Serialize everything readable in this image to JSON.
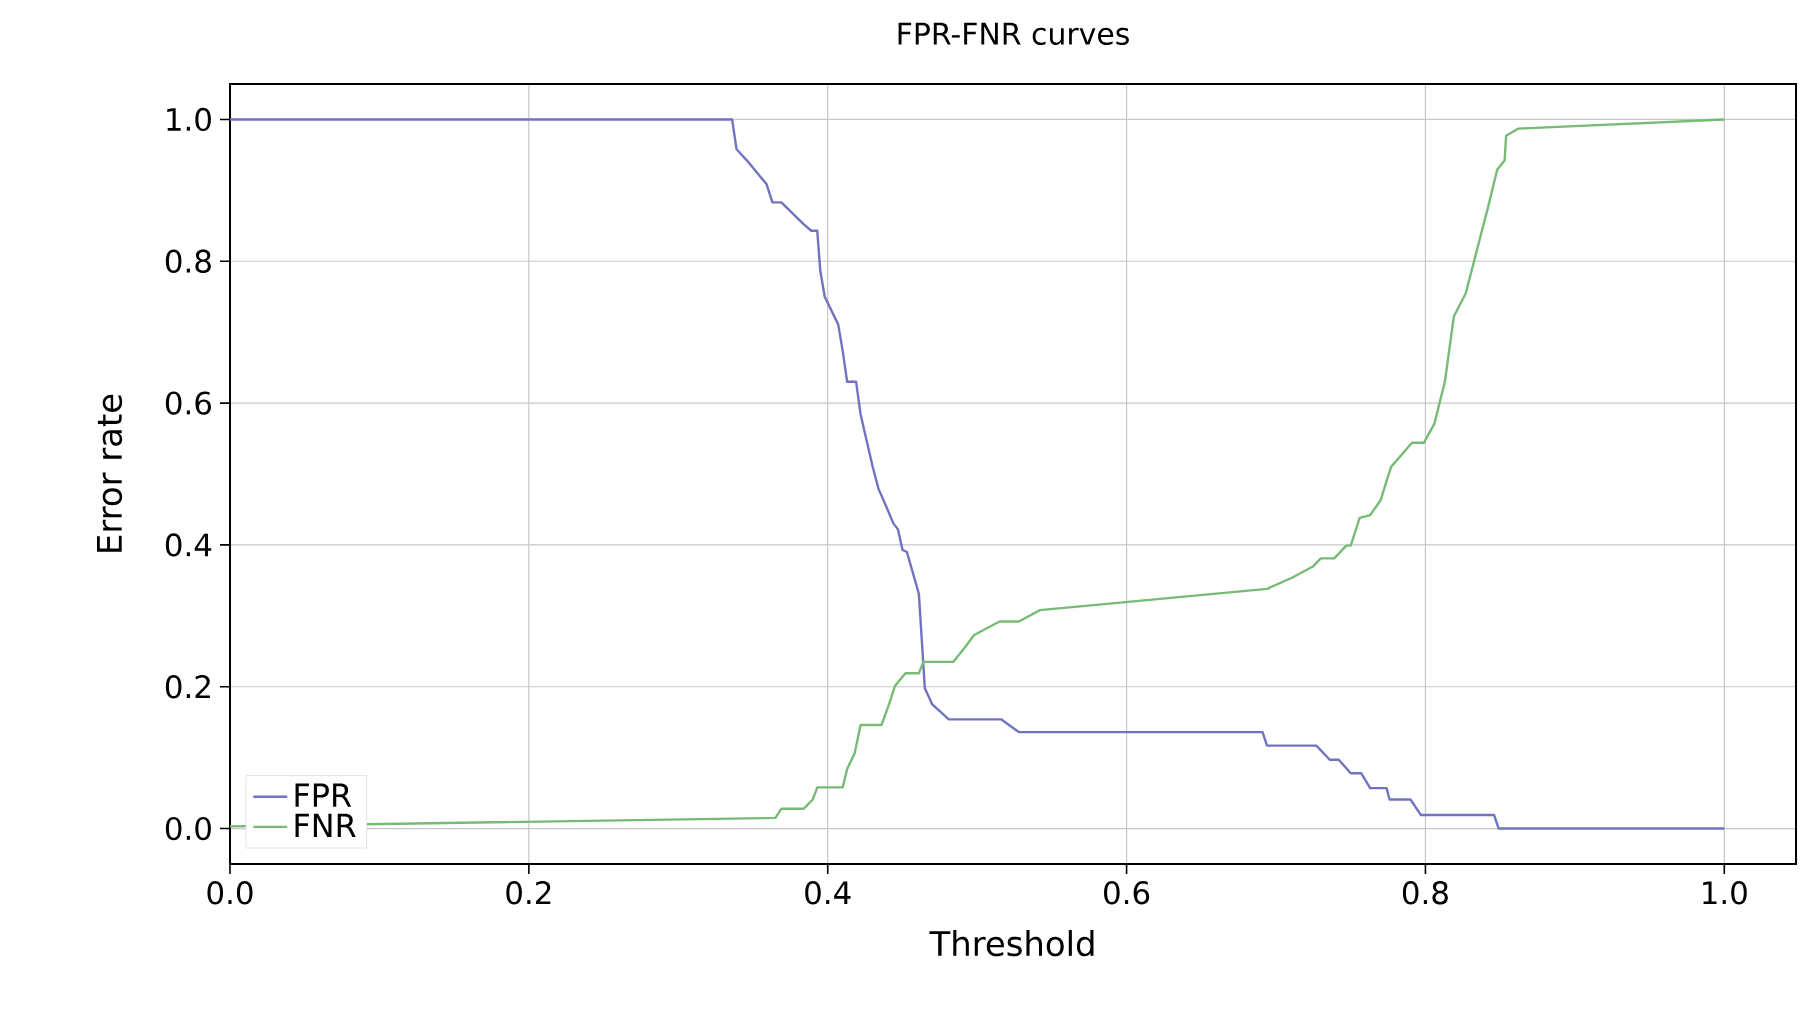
{
  "chart_data": {
    "type": "line",
    "title": "FPR-FNR curves",
    "xlabel": "Threshold",
    "ylabel": "Error rate",
    "xlim": [
      0,
      1.048
    ],
    "ylim": [
      -0.05,
      1.05
    ],
    "xticks": [
      {
        "value": 0,
        "label": "0.0"
      },
      0.2,
      0.4,
      0.6,
      0.8,
      {
        "value": 1,
        "label": "1.0"
      }
    ],
    "yticks": [
      {
        "value": 0,
        "label": "0.0"
      },
      0.2,
      0.4,
      0.6,
      0.8,
      {
        "value": 1,
        "label": "1.0"
      }
    ],
    "grid": true,
    "legend": "bottom left",
    "marker": "none",
    "line_style": "solid",
    "series": [
      {
        "name": "FPR",
        "color": "#7074c0",
        "x": [
          0,
          0.336,
          0.339,
          0.346,
          0.359,
          0.363,
          0.369,
          0.384,
          0.389,
          0.393,
          0.395,
          0.398,
          0.407,
          0.41,
          0.413,
          0.419,
          0.422,
          0.43,
          0.434,
          0.439,
          0.444,
          0.447,
          0.45,
          0.453,
          0.461,
          0.465,
          0.47,
          0.481,
          0.516,
          0.528,
          0.691,
          0.694,
          0.727,
          0.736,
          0.742,
          0.75,
          0.757,
          0.763,
          0.774,
          0.776,
          0.79,
          0.797,
          0.846,
          0.849,
          1.0
        ],
        "values": [
          1,
          1,
          0.958,
          0.942,
          0.909,
          0.883,
          0.883,
          0.852,
          0.843,
          0.843,
          0.787,
          0.75,
          0.711,
          0.674,
          0.63,
          0.63,
          0.584,
          0.511,
          0.479,
          0.455,
          0.43,
          0.422,
          0.393,
          0.39,
          0.331,
          0.198,
          0.175,
          0.154,
          0.154,
          0.136,
          0.136,
          0.117,
          0.117,
          0.097,
          0.097,
          0.078,
          0.078,
          0.057,
          0.057,
          0.041,
          0.041,
          0.019,
          0.019,
          0.0,
          0.0
        ]
      },
      {
        "name": "FNR",
        "color": "#77bb77",
        "x": [
          0,
          0.365,
          0.369,
          0.384,
          0.39,
          0.393,
          0.41,
          0.413,
          0.418,
          0.422,
          0.436,
          0.441,
          0.445,
          0.452,
          0.461,
          0.464,
          0.484,
          0.492,
          0.498,
          0.515,
          0.528,
          0.542,
          0.694,
          0.711,
          0.725,
          0.73,
          0.739,
          0.747,
          0.75,
          0.756,
          0.763,
          0.77,
          0.777,
          0.791,
          0.799,
          0.806,
          0.813,
          0.819,
          0.827,
          0.833,
          0.842,
          0.848,
          0.853,
          0.854,
          0.862,
          1.0
        ],
        "values": [
          0.003,
          0.015,
          0.028,
          0.028,
          0.041,
          0.058,
          0.058,
          0.084,
          0.106,
          0.146,
          0.146,
          0.175,
          0.201,
          0.219,
          0.219,
          0.235,
          0.235,
          0.256,
          0.273,
          0.292,
          0.292,
          0.308,
          0.338,
          0.354,
          0.37,
          0.381,
          0.381,
          0.399,
          0.399,
          0.438,
          0.442,
          0.463,
          0.51,
          0.544,
          0.544,
          0.571,
          0.63,
          0.722,
          0.755,
          0.804,
          0.877,
          0.929,
          0.942,
          0.977,
          0.987,
          1.0
        ]
      }
    ]
  }
}
